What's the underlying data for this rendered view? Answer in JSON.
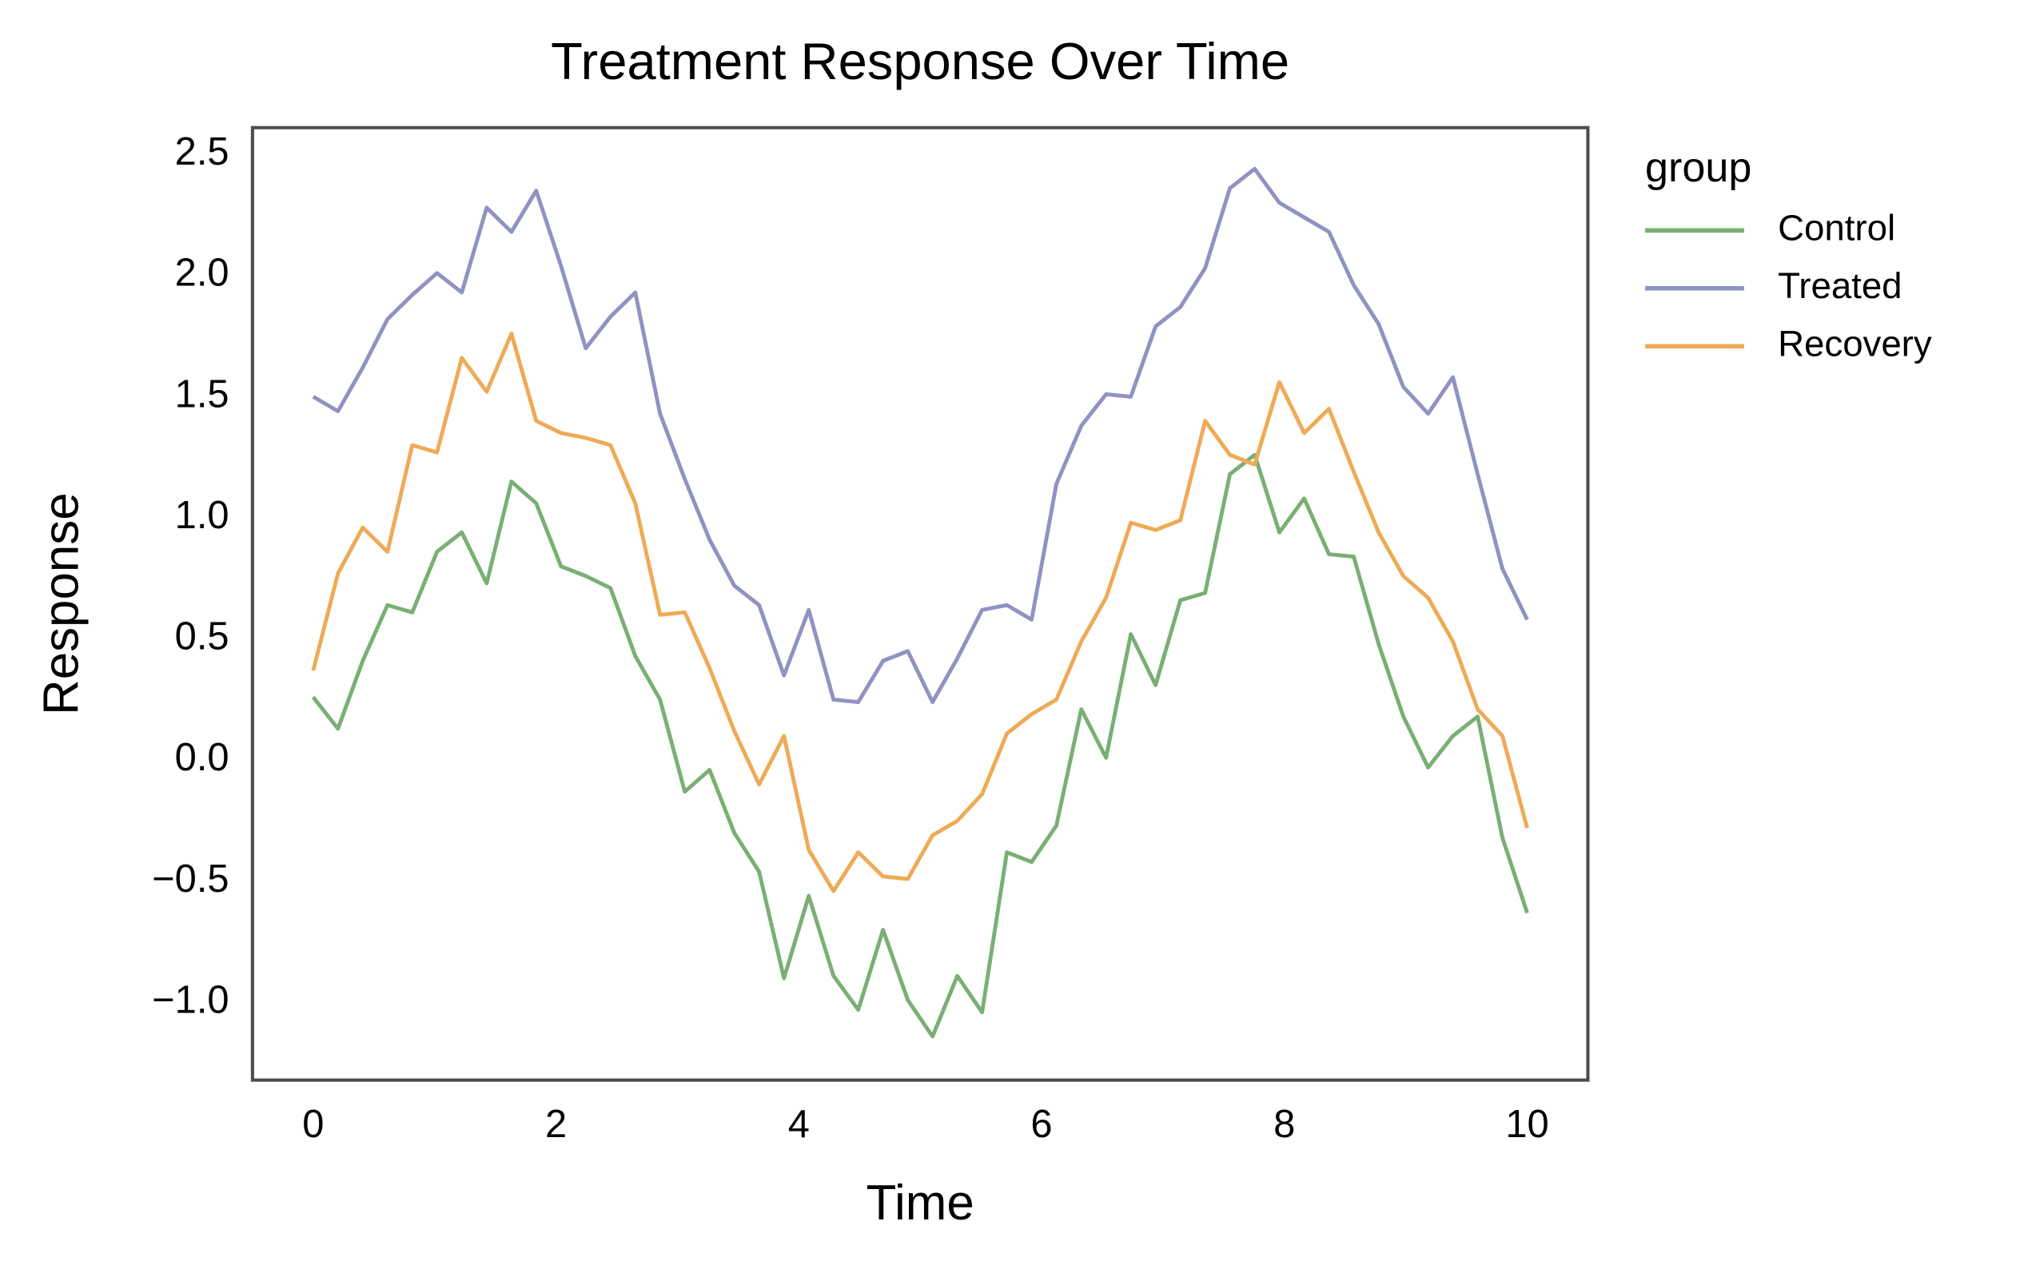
{
  "chart_data": {
    "type": "line",
    "title": "Treatment Response Over Time",
    "x_label": "Time",
    "y_label": "Response",
    "legend_title": "group",
    "legend_position": "outside-right",
    "grid": false,
    "x": [
      0,
      0.204,
      0.408,
      0.612,
      0.816,
      1.02,
      1.224,
      1.429,
      1.633,
      1.837,
      2.041,
      2.245,
      2.449,
      2.653,
      2.857,
      3.061,
      3.265,
      3.469,
      3.673,
      3.878,
      4.082,
      4.286,
      4.49,
      4.694,
      4.898,
      5.102,
      5.306,
      5.51,
      5.714,
      5.918,
      6.122,
      6.327,
      6.531,
      6.735,
      6.939,
      7.143,
      7.347,
      7.551,
      7.755,
      7.959,
      8.163,
      8.367,
      8.571,
      8.776,
      8.98,
      9.184,
      9.388,
      9.592,
      9.796,
      10
    ],
    "series": [
      {
        "name": "Control",
        "color": "#7aaf74",
        "values": [
          0.26,
          0.13,
          0.41,
          0.64,
          0.61,
          0.86,
          0.94,
          0.73,
          1.15,
          1.06,
          0.8,
          0.76,
          0.71,
          0.43,
          0.25,
          -0.13,
          -0.04,
          -0.3,
          -0.46,
          -0.9,
          -0.56,
          -0.89,
          -1.03,
          -0.7,
          -0.99,
          -1.14,
          -0.89,
          -1.04,
          -0.38,
          -0.42,
          -0.27,
          0.21,
          0.01,
          0.52,
          0.31,
          0.66,
          0.69,
          1.18,
          1.26,
          0.94,
          1.08,
          0.85,
          0.84,
          0.48,
          0.18,
          -0.03,
          0.1,
          0.18,
          -0.32,
          -0.63
        ]
      },
      {
        "name": "Treated",
        "color": "#9092c2",
        "values": [
          1.5,
          1.44,
          1.62,
          1.82,
          1.92,
          2.01,
          1.93,
          2.28,
          2.18,
          2.35,
          2.04,
          1.7,
          1.83,
          1.93,
          1.43,
          1.16,
          0.91,
          0.72,
          0.64,
          0.35,
          0.62,
          0.25,
          0.24,
          0.41,
          0.45,
          0.24,
          0.42,
          0.62,
          0.64,
          0.58,
          1.14,
          1.38,
          1.51,
          1.5,
          1.79,
          1.87,
          2.03,
          2.36,
          2.44,
          2.3,
          2.24,
          2.18,
          1.96,
          1.8,
          1.54,
          1.43,
          1.58,
          1.18,
          0.79,
          0.58
        ]
      },
      {
        "name": "Recovery",
        "color": "#eeaa55",
        "values": [
          0.37,
          0.77,
          0.96,
          0.86,
          1.3,
          1.27,
          1.66,
          1.52,
          1.76,
          1.4,
          1.35,
          1.33,
          1.3,
          1.06,
          0.6,
          0.61,
          0.38,
          0.12,
          -0.1,
          0.1,
          -0.37,
          -0.54,
          -0.38,
          -0.48,
          -0.49,
          -0.31,
          -0.25,
          -0.14,
          0.11,
          0.19,
          0.25,
          0.49,
          0.67,
          0.98,
          0.95,
          0.99,
          1.4,
          1.26,
          1.22,
          1.56,
          1.35,
          1.45,
          1.19,
          0.94,
          0.76,
          0.67,
          0.49,
          0.21,
          0.1,
          -0.28
        ]
      }
    ],
    "xlim": [
      -0.5,
      10.5
    ],
    "ylim": [
      -1.32,
      2.61
    ],
    "xticks": [
      0,
      2,
      4,
      6,
      8,
      10
    ],
    "yticks": [
      {
        "value": -1,
        "label": "−1.0"
      },
      {
        "value": -0.5,
        "label": "−0.5"
      },
      {
        "value": 0,
        "label": "0.0"
      },
      0.5,
      {
        "value": 1,
        "label": "1.0"
      },
      1.5,
      {
        "value": 2,
        "label": "2.0"
      },
      2.5
    ]
  }
}
